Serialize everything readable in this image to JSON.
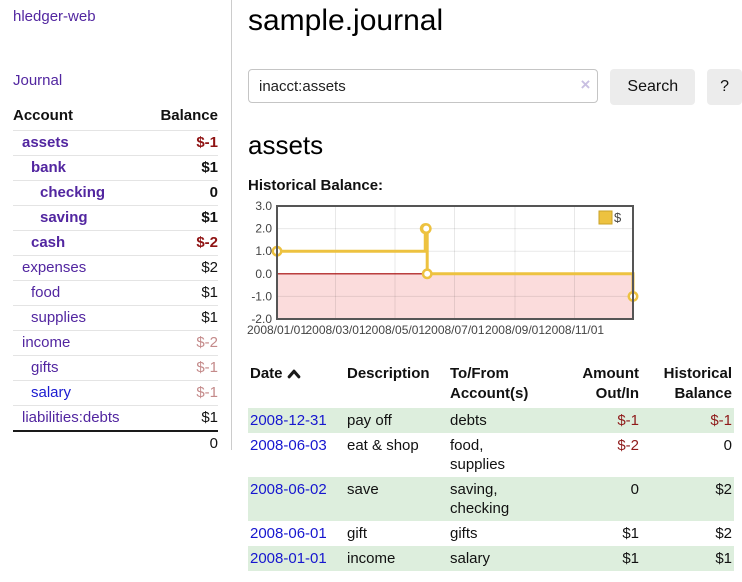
{
  "sidebar": {
    "brand": "hledger-web",
    "nav": {
      "journal": "Journal"
    },
    "accounts_table": {
      "col_account": "Account",
      "col_balance": "Balance",
      "rows": [
        {
          "name": "assets",
          "balance": "$-1"
        },
        {
          "name": "bank",
          "balance": "$1"
        },
        {
          "name": "checking",
          "balance": "0"
        },
        {
          "name": "saving",
          "balance": "$1"
        },
        {
          "name": "cash",
          "balance": "$-2"
        },
        {
          "name": "expenses",
          "balance": "$2"
        },
        {
          "name": "food",
          "balance": "$1"
        },
        {
          "name": "supplies",
          "balance": "$1"
        },
        {
          "name": "income",
          "balance": "$-2"
        },
        {
          "name": "gifts",
          "balance": "$-1"
        },
        {
          "name": "salary",
          "balance": "$-1"
        },
        {
          "name": "liabilities:debts",
          "balance": "$1"
        }
      ],
      "total": "0"
    }
  },
  "header": {
    "title": "sample.journal"
  },
  "search": {
    "value": "inacct:assets",
    "clear_icon": "×",
    "button_label": "Search",
    "help_label": "?"
  },
  "account_page": {
    "heading": "assets",
    "chart_label": "Historical Balance:"
  },
  "chart_data": {
    "type": "line",
    "title": "Historical Balance",
    "step": true,
    "series": [
      {
        "name": "$",
        "color": "#edc240",
        "points": [
          {
            "date": "2008-01-01",
            "day": 0,
            "value": 1
          },
          {
            "date": "2008-06-01",
            "day": 152,
            "value": 2
          },
          {
            "date": "2008-06-02",
            "day": 153,
            "value": 2
          },
          {
            "date": "2008-06-03",
            "day": 154,
            "value": 0
          },
          {
            "date": "2008-12-31",
            "day": 365,
            "value": -1
          }
        ]
      }
    ],
    "x_ticks": [
      {
        "day": 0,
        "label": "2008/01/01"
      },
      {
        "day": 60,
        "label": "2008/03/01"
      },
      {
        "day": 121,
        "label": "2008/05/01"
      },
      {
        "day": 182,
        "label": "2008/07/01"
      },
      {
        "day": 244,
        "label": "2008/09/01"
      },
      {
        "day": 305,
        "label": "2008/11/01"
      }
    ],
    "y_ticks": [
      {
        "value": 3,
        "label": "3.0"
      },
      {
        "value": 2,
        "label": "2.0"
      },
      {
        "value": 1,
        "label": "1.0"
      },
      {
        "value": 0,
        "label": "0.0"
      },
      {
        "value": -1,
        "label": "-1.0"
      },
      {
        "value": -2,
        "label": "-2.0"
      }
    ],
    "x_range_days": [
      0,
      365
    ],
    "ylim": [
      -2,
      3
    ],
    "grid": true,
    "legend": {
      "label": "$",
      "position": "top-right"
    },
    "colors": {
      "line": "#edc240",
      "marker_fill": "#ffffff",
      "negative_region_fill": "#fbdcdc",
      "zero_line": "#a40000",
      "gridline": "#000000",
      "border": "#555555",
      "tick_text": "#444444"
    }
  },
  "register_table": {
    "headers": {
      "date": "Date",
      "description": "Description",
      "tofrom": "To/From Account(s)",
      "amount": "Amount Out/In",
      "balance": "Historical Balance"
    },
    "rows": [
      {
        "date": "2008-12-31",
        "description": "pay off",
        "accounts": "debts",
        "amount": "$-1",
        "balance": "$-1"
      },
      {
        "date": "2008-06-03",
        "description": "eat & shop",
        "accounts": "food, supplies",
        "amount": "$-2",
        "balance": "0"
      },
      {
        "date": "2008-06-02",
        "description": "save",
        "accounts": "saving, checking",
        "amount": "0",
        "balance": "$2"
      },
      {
        "date": "2008-06-01",
        "description": "gift",
        "accounts": "gifts",
        "amount": "$1",
        "balance": "$2"
      },
      {
        "date": "2008-01-01",
        "description": "income",
        "accounts": "salary",
        "amount": "$1",
        "balance": "$1"
      }
    ]
  }
}
